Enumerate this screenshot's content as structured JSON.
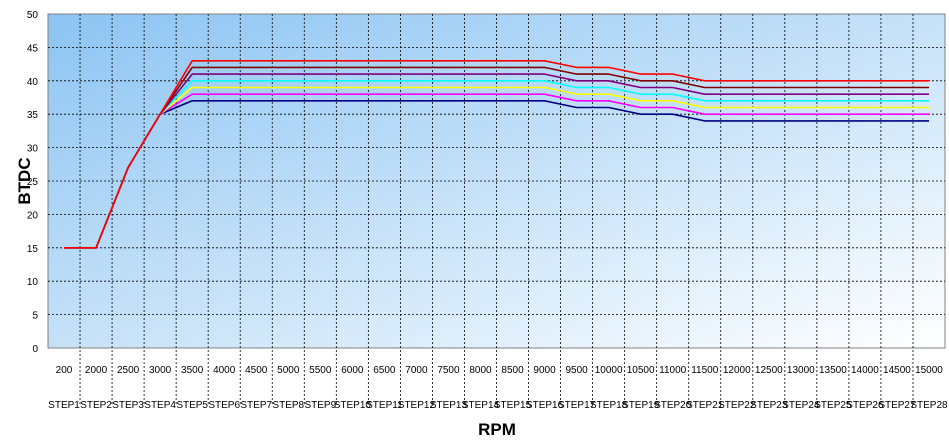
{
  "chart_data": {
    "type": "line",
    "title": "",
    "xlabel": "RPM",
    "ylabel": "BTDC",
    "ylim": [
      0,
      50
    ],
    "y_ticks": [
      0,
      5,
      10,
      15,
      20,
      25,
      30,
      35,
      40,
      45,
      50
    ],
    "grid": true,
    "legend": "none",
    "categories": [
      {
        "rpm": "200",
        "step": "STEP1"
      },
      {
        "rpm": "2000",
        "step": "STEP2"
      },
      {
        "rpm": "2500",
        "step": "STEP3"
      },
      {
        "rpm": "3000",
        "step": "STEP4"
      },
      {
        "rpm": "3500",
        "step": "STEP5"
      },
      {
        "rpm": "4000",
        "step": "STEP6"
      },
      {
        "rpm": "4500",
        "step": "STEP7"
      },
      {
        "rpm": "5000",
        "step": "STEP8"
      },
      {
        "rpm": "5500",
        "step": "STEP9"
      },
      {
        "rpm": "6000",
        "step": "STEP10"
      },
      {
        "rpm": "6500",
        "step": "STEP11"
      },
      {
        "rpm": "7000",
        "step": "STEP12"
      },
      {
        "rpm": "7500",
        "step": "STEP13"
      },
      {
        "rpm": "8000",
        "step": "STEP14"
      },
      {
        "rpm": "8500",
        "step": "STEP15"
      },
      {
        "rpm": "9000",
        "step": "STEP16"
      },
      {
        "rpm": "9500",
        "step": "STEP17"
      },
      {
        "rpm": "10000",
        "step": "STEP18"
      },
      {
        "rpm": "10500",
        "step": "STEP19"
      },
      {
        "rpm": "11000",
        "step": "STEP20"
      },
      {
        "rpm": "11500",
        "step": "STEP21"
      },
      {
        "rpm": "12000",
        "step": "STEP22"
      },
      {
        "rpm": "12500",
        "step": "STEP23"
      },
      {
        "rpm": "13000",
        "step": "STEP24"
      },
      {
        "rpm": "13500",
        "step": "STEP25"
      },
      {
        "rpm": "14000",
        "step": "STEP26"
      },
      {
        "rpm": "14500",
        "step": "STEP27"
      },
      {
        "rpm": "15000",
        "step": "STEP28"
      }
    ],
    "series": [
      {
        "color": "#000080",
        "values": [
          15,
          15,
          27,
          35,
          37,
          37,
          37,
          37,
          37,
          37,
          37,
          37,
          37,
          37,
          37,
          37,
          36,
          36,
          35,
          35,
          34,
          34,
          34,
          34,
          34,
          34,
          34,
          34
        ]
      },
      {
        "color": "#ff00ff",
        "values": [
          15,
          15,
          27,
          35,
          38,
          38,
          38,
          38,
          38,
          38,
          38,
          38,
          38,
          38,
          38,
          38,
          37,
          37,
          36,
          36,
          35,
          35,
          35,
          35,
          35,
          35,
          35,
          35
        ]
      },
      {
        "color": "#ffff00",
        "values": [
          15,
          15,
          27,
          35,
          39,
          39,
          39,
          39,
          39,
          39,
          39,
          39,
          39,
          39,
          39,
          39,
          38,
          38,
          37,
          37,
          36,
          36,
          36,
          36,
          36,
          36,
          36,
          36
        ]
      },
      {
        "color": "#00ffff",
        "values": [
          15,
          15,
          27,
          35,
          40,
          40,
          40,
          40,
          40,
          40,
          40,
          40,
          40,
          40,
          40,
          40,
          39,
          39,
          38,
          38,
          37,
          37,
          37,
          37,
          37,
          37,
          37,
          37
        ]
      },
      {
        "color": "#800080",
        "values": [
          15,
          15,
          27,
          35,
          41,
          41,
          41,
          41,
          41,
          41,
          41,
          41,
          41,
          41,
          41,
          41,
          40,
          40,
          39,
          39,
          38,
          38,
          38,
          38,
          38,
          38,
          38,
          38
        ]
      },
      {
        "color": "#800000",
        "values": [
          15,
          15,
          27,
          35,
          42,
          42,
          42,
          42,
          42,
          42,
          42,
          42,
          42,
          42,
          42,
          42,
          41,
          41,
          40,
          40,
          39,
          39,
          39,
          39,
          39,
          39,
          39,
          39
        ]
      },
      {
        "color": "#ff0000",
        "values": [
          15,
          15,
          27,
          35,
          43,
          43,
          43,
          43,
          43,
          43,
          43,
          43,
          43,
          43,
          43,
          43,
          42,
          42,
          41,
          41,
          40,
          40,
          40,
          40,
          40,
          40,
          40,
          40
        ]
      }
    ]
  },
  "colors": {
    "plot_gradient_start": "#8cc4f2",
    "plot_gradient_end": "#ffffff"
  }
}
